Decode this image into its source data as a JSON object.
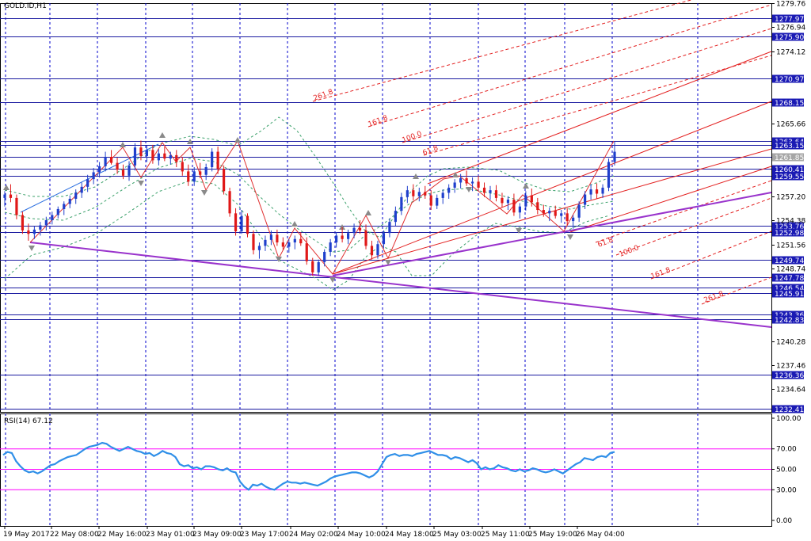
{
  "chart_data": {
    "type": "candlestick",
    "symbol_label": "GOLD.ID,H1",
    "ylim": [
      1232.0,
      1279.76
    ],
    "price_ticks": [
      "1279.76",
      "1276.94",
      "1274.12",
      "1265.66",
      "1257.20",
      "1254.38",
      "1251.56",
      "1248.74",
      "1240.28",
      "1237.46",
      "1234.64"
    ],
    "price_tick_values": [
      1279.76,
      1276.94,
      1274.12,
      1265.66,
      1257.2,
      1254.38,
      1251.56,
      1248.74,
      1240.28,
      1237.46,
      1234.64
    ],
    "level_labels": [
      "1277.97",
      "1275.90",
      "1270.97",
      "1268.15",
      "1263.64",
      "1263.15",
      "1261.85",
      "1260.41",
      "1259.55",
      "1253.76",
      "1252.98",
      "1249.74",
      "1247.78",
      "1246.54",
      "1245.91",
      "1243.36",
      "1242.83",
      "1236.36",
      "1232.41"
    ],
    "level_values": [
      1277.97,
      1275.9,
      1270.97,
      1268.15,
      1263.64,
      1263.15,
      1261.85,
      1260.41,
      1259.55,
      1253.76,
      1252.98,
      1249.74,
      1247.78,
      1246.54,
      1245.91,
      1243.36,
      1242.83,
      1236.36,
      1232.41
    ],
    "time_labels": [
      "19 May 2017",
      "22 May 08:00",
      "22 May 16:00",
      "23 May 01:00",
      "23 May 09:00",
      "23 May 17:00",
      "24 May 02:00",
      "24 May 10:00",
      "24 May 18:00",
      "25 May 03:00",
      "25 May 11:00",
      "25 May 19:00",
      "26 May 04:00"
    ],
    "fib_upper_labels": [
      "261.8",
      "161.8",
      "100.0",
      "61.8"
    ],
    "fib_lower_labels": [
      "61.8",
      "100.0",
      "161.8",
      "261.8"
    ],
    "candles": [
      [
        1257.0,
        1257.8,
        1256.0,
        1257.4
      ],
      [
        1257.4,
        1258.6,
        1256.5,
        1257.0
      ],
      [
        1257.0,
        1257.4,
        1254.5,
        1255.0
      ],
      [
        1255.0,
        1255.4,
        1252.8,
        1253.2
      ],
      [
        1253.2,
        1254.0,
        1252.0,
        1252.8
      ],
      [
        1252.8,
        1253.7,
        1252.2,
        1253.3
      ],
      [
        1253.3,
        1254.2,
        1252.6,
        1253.8
      ],
      [
        1253.8,
        1254.8,
        1253.2,
        1254.4
      ],
      [
        1254.4,
        1255.4,
        1253.9,
        1255.0
      ],
      [
        1255.0,
        1256.0,
        1254.6,
        1255.7
      ],
      [
        1255.7,
        1256.6,
        1255.0,
        1256.3
      ],
      [
        1256.3,
        1257.3,
        1255.8,
        1256.9
      ],
      [
        1256.9,
        1258.0,
        1256.3,
        1257.6
      ],
      [
        1257.6,
        1258.8,
        1257.0,
        1258.3
      ],
      [
        1258.3,
        1259.7,
        1257.7,
        1259.2
      ],
      [
        1259.2,
        1260.5,
        1258.6,
        1260.0
      ],
      [
        1260.0,
        1261.2,
        1259.4,
        1260.7
      ],
      [
        1260.7,
        1262.4,
        1260.1,
        1261.8
      ],
      [
        1261.8,
        1262.6,
        1260.9,
        1261.1
      ],
      [
        1261.1,
        1261.7,
        1259.8,
        1260.3
      ],
      [
        1260.3,
        1260.9,
        1259.2,
        1259.6
      ],
      [
        1259.6,
        1261.3,
        1259.0,
        1260.8
      ],
      [
        1260.8,
        1263.4,
        1260.2,
        1262.9
      ],
      [
        1262.9,
        1263.7,
        1261.4,
        1261.9
      ],
      [
        1261.9,
        1263.1,
        1261.2,
        1262.6
      ],
      [
        1262.6,
        1263.2,
        1261.0,
        1261.4
      ],
      [
        1261.4,
        1262.7,
        1260.8,
        1262.2
      ],
      [
        1262.2,
        1263.0,
        1261.3,
        1261.6
      ],
      [
        1261.6,
        1262.4,
        1260.9,
        1262.0
      ],
      [
        1262.0,
        1262.6,
        1260.6,
        1261.2
      ],
      [
        1261.2,
        1261.8,
        1259.6,
        1260.1
      ],
      [
        1260.1,
        1260.9,
        1258.4,
        1258.9
      ],
      [
        1258.9,
        1260.6,
        1258.4,
        1260.1
      ],
      [
        1260.1,
        1261.1,
        1259.3,
        1259.7
      ],
      [
        1259.7,
        1261.0,
        1259.1,
        1260.6
      ],
      [
        1260.6,
        1262.8,
        1260.1,
        1262.4
      ],
      [
        1262.4,
        1263.0,
        1259.8,
        1260.4
      ],
      [
        1260.4,
        1260.8,
        1257.4,
        1257.8
      ],
      [
        1257.8,
        1258.2,
        1254.8,
        1255.2
      ],
      [
        1255.2,
        1255.8,
        1252.6,
        1253.1
      ],
      [
        1253.1,
        1255.6,
        1252.8,
        1254.9
      ],
      [
        1254.9,
        1255.2,
        1252.4,
        1252.8
      ],
      [
        1252.8,
        1253.2,
        1250.4,
        1250.9
      ],
      [
        1250.9,
        1251.8,
        1249.9,
        1251.4
      ],
      [
        1251.4,
        1252.6,
        1250.8,
        1252.1
      ],
      [
        1252.1,
        1253.2,
        1251.5,
        1252.7
      ],
      [
        1252.7,
        1253.3,
        1251.4,
        1251.8
      ],
      [
        1251.8,
        1252.4,
        1250.9,
        1251.3
      ],
      [
        1251.3,
        1252.2,
        1250.6,
        1251.8
      ],
      [
        1251.8,
        1252.6,
        1251.0,
        1252.2
      ],
      [
        1252.2,
        1253.0,
        1251.4,
        1251.7
      ],
      [
        1251.7,
        1252.4,
        1249.2,
        1249.6
      ],
      [
        1249.6,
        1250.0,
        1247.9,
        1248.3
      ],
      [
        1248.3,
        1249.8,
        1247.9,
        1249.5
      ],
      [
        1249.5,
        1251.0,
        1249.0,
        1250.7
      ],
      [
        1250.7,
        1252.2,
        1250.2,
        1251.8
      ],
      [
        1251.8,
        1253.0,
        1251.2,
        1252.6
      ],
      [
        1252.6,
        1253.6,
        1251.8,
        1252.2
      ],
      [
        1252.2,
        1253.3,
        1251.6,
        1252.9
      ],
      [
        1252.9,
        1254.0,
        1252.3,
        1253.5
      ],
      [
        1253.5,
        1254.4,
        1252.8,
        1253.2
      ],
      [
        1253.2,
        1253.9,
        1251.0,
        1251.4
      ],
      [
        1251.4,
        1252.0,
        1249.8,
        1250.3
      ],
      [
        1250.3,
        1252.0,
        1249.9,
        1251.6
      ],
      [
        1251.6,
        1253.2,
        1251.1,
        1252.9
      ],
      [
        1252.9,
        1254.6,
        1252.4,
        1254.2
      ],
      [
        1254.2,
        1256.0,
        1253.7,
        1255.5
      ],
      [
        1255.5,
        1257.6,
        1255.0,
        1257.1
      ],
      [
        1257.1,
        1258.4,
        1256.4,
        1257.9
      ],
      [
        1257.9,
        1258.6,
        1256.7,
        1257.2
      ],
      [
        1257.2,
        1258.2,
        1256.6,
        1257.7
      ],
      [
        1257.7,
        1258.4,
        1256.9,
        1257.3
      ],
      [
        1257.3,
        1257.9,
        1255.6,
        1256.1
      ],
      [
        1256.1,
        1257.4,
        1255.7,
        1257.0
      ],
      [
        1257.0,
        1258.0,
        1256.3,
        1257.6
      ],
      [
        1257.6,
        1258.6,
        1256.9,
        1258.2
      ],
      [
        1258.2,
        1259.2,
        1257.6,
        1258.8
      ],
      [
        1258.8,
        1259.8,
        1258.1,
        1259.3
      ],
      [
        1259.3,
        1260.2,
        1258.4,
        1258.7
      ],
      [
        1258.7,
        1259.4,
        1257.8,
        1258.9
      ],
      [
        1258.9,
        1259.6,
        1257.9,
        1258.2
      ],
      [
        1258.2,
        1258.8,
        1257.1,
        1257.6
      ],
      [
        1257.6,
        1258.4,
        1256.8,
        1257.9
      ],
      [
        1257.9,
        1258.5,
        1256.6,
        1257.0
      ],
      [
        1257.0,
        1257.6,
        1255.9,
        1256.4
      ],
      [
        1256.4,
        1257.2,
        1255.6,
        1256.8
      ],
      [
        1256.8,
        1257.5,
        1254.9,
        1255.3
      ],
      [
        1255.3,
        1256.4,
        1254.6,
        1256.0
      ],
      [
        1256.0,
        1257.8,
        1255.5,
        1257.3
      ],
      [
        1257.3,
        1258.1,
        1256.0,
        1256.5
      ],
      [
        1256.5,
        1257.0,
        1255.1,
        1255.6
      ],
      [
        1255.6,
        1256.2,
        1254.8,
        1255.2
      ],
      [
        1255.2,
        1255.9,
        1254.3,
        1255.5
      ],
      [
        1255.5,
        1256.1,
        1254.6,
        1254.9
      ],
      [
        1254.9,
        1255.6,
        1254.1,
        1255.2
      ],
      [
        1255.2,
        1255.8,
        1253.8,
        1254.3
      ],
      [
        1254.3,
        1255.0,
        1253.4,
        1254.7
      ],
      [
        1254.7,
        1256.6,
        1254.2,
        1256.2
      ],
      [
        1256.2,
        1257.8,
        1255.7,
        1257.4
      ],
      [
        1257.4,
        1258.6,
        1256.8,
        1258.0
      ],
      [
        1258.0,
        1258.7,
        1256.9,
        1257.5
      ],
      [
        1257.5,
        1258.6,
        1257.0,
        1258.2
      ],
      [
        1258.2,
        1261.6,
        1257.8,
        1261.2
      ],
      [
        1261.2,
        1263.6,
        1260.8,
        1262.4
      ]
    ],
    "rsi": {
      "label": "RSI(14) 67.12",
      "ylim": [
        0,
        100
      ],
      "tick_labels": [
        "100.00",
        "70.00",
        "50.00",
        "30.00",
        "0.00"
      ],
      "tick_values": [
        100,
        70,
        50,
        30,
        0
      ],
      "levels": [
        70,
        50,
        30
      ],
      "values": [
        64,
        67,
        66,
        58,
        53,
        49,
        47,
        48,
        46,
        48,
        51,
        54,
        55,
        58,
        60,
        62,
        63,
        64,
        67,
        70,
        72,
        73,
        74,
        76,
        75,
        72,
        70,
        68,
        70,
        72,
        70,
        68,
        67,
        65,
        66,
        63,
        65,
        68,
        66,
        65,
        62,
        55,
        53,
        54,
        51,
        52,
        50,
        53,
        53,
        52,
        50,
        49,
        51,
        48,
        47,
        38,
        33,
        30,
        35,
        34,
        36,
        33,
        31,
        30,
        33,
        36,
        38,
        37,
        37,
        36,
        37,
        36,
        35,
        34,
        36,
        38,
        41,
        43,
        44,
        45,
        46,
        47,
        47,
        46,
        44,
        42,
        44,
        48,
        55,
        62,
        64,
        65,
        63,
        64,
        64,
        63,
        65,
        66,
        67,
        68,
        66,
        64,
        64,
        63,
        60,
        62,
        61,
        59,
        57,
        59,
        56,
        50,
        52,
        50,
        51,
        54,
        52,
        51,
        49,
        48,
        50,
        48,
        49,
        51,
        50,
        48,
        47,
        48,
        50,
        48,
        46,
        49,
        52,
        55,
        57,
        61,
        60,
        59,
        62,
        63,
        62,
        66,
        67
      ]
    }
  },
  "colors": {
    "bull": "#1f3fcc",
    "bear": "#e01818",
    "grid": "#0000cc",
    "level": "#1a1aa0",
    "level_label_bg": "#1a1ab4",
    "current_price_bg": "#a6a6a6",
    "fib": "#e32020",
    "trend": "#9933cc",
    "channel": "#3aa06a",
    "zigzag": "#e03030",
    "rsi_line": "#2f8fe8",
    "rsi_level": "#ff00ff"
  }
}
